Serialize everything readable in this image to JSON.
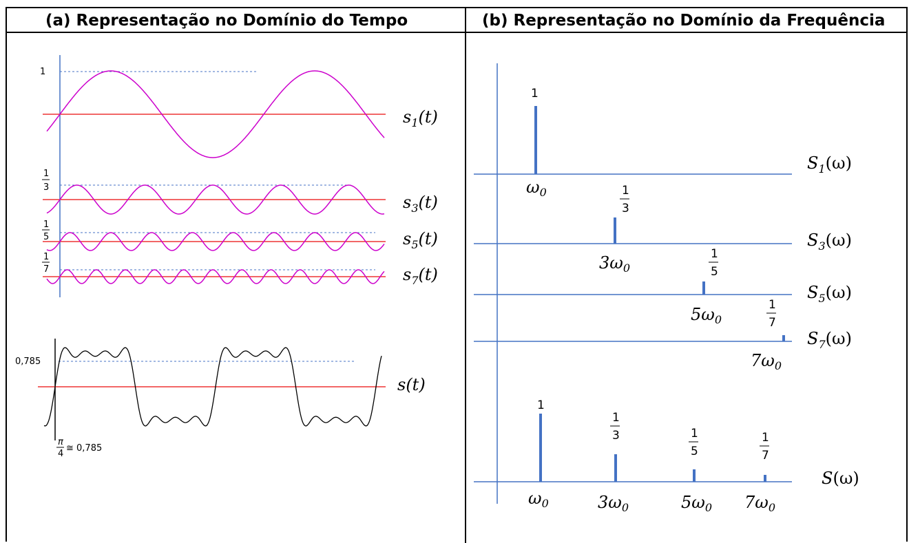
{
  "headers": {
    "left": "(a)  Representação no Domínio do Tempo",
    "right": "(b) Representação no Domínio da Frequência"
  },
  "time_domain": {
    "amplitude_1": "1",
    "amplitude_3": "1/3",
    "amplitude_5": "1/5",
    "amplitude_7": "1/7",
    "label_s1": "s1(t)",
    "label_s3": "s3(t)",
    "label_s5": "s5(t)",
    "label_s7": "s7(t)",
    "label_s": "s(t)",
    "sum_peak": "0,785",
    "sum_note": "π/4 ≅ 0,785"
  },
  "frequency_domain": {
    "spectra": [
      {
        "label": "S1(ω)",
        "harmonic": 1,
        "amplitude_text": "1",
        "freq_text": "ω0"
      },
      {
        "label": "S3(ω)",
        "harmonic": 3,
        "amplitude_text": "1/3",
        "freq_text": "3ω0"
      },
      {
        "label": "S5(ω)",
        "harmonic": 5,
        "amplitude_text": "1/5",
        "freq_text": "5ω0"
      },
      {
        "label": "S7(ω)",
        "harmonic": 7,
        "amplitude_text": "1/7",
        "freq_text": "7ω0"
      }
    ],
    "combined_label": "S(ω)",
    "combined_amplitudes": [
      "1",
      "1/3",
      "1/5",
      "1/7"
    ],
    "combined_freqs": [
      "ω0",
      "3ω0",
      "5ω0",
      "7ω0"
    ]
  },
  "colors": {
    "sine": "#cc00cc",
    "axis_red": "#ee3333",
    "axis_blue": "#4472c4",
    "spike": "#4472c4",
    "sum": "#000000"
  }
}
